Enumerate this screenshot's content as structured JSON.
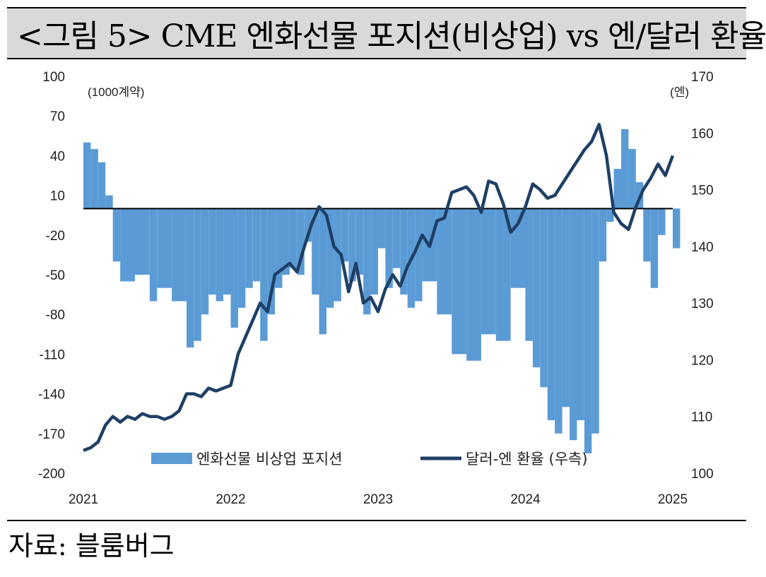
{
  "header": {
    "title": "<그림 5> CME 엔화선물 포지션(비상업) vs 엔/달러 환율"
  },
  "footer": {
    "source": "자료: 블룸버그"
  },
  "chart_data": {
    "type": "bar+line",
    "title": "",
    "left_axis": {
      "unit_label": "(1000계약)",
      "ylim": [
        -200,
        100
      ],
      "ticks": [
        100,
        70,
        40,
        10,
        -20,
        -50,
        -80,
        -110,
        -140,
        -170,
        -200
      ]
    },
    "right_axis": {
      "unit_label": "(엔)",
      "ylim": [
        100,
        170
      ],
      "ticks": [
        170,
        160,
        150,
        140,
        130,
        120,
        110,
        100
      ]
    },
    "x_axis": {
      "range": [
        2021.0,
        2025.0
      ],
      "ticks": [
        "2021",
        "2022",
        "2023",
        "2024",
        "2025"
      ]
    },
    "legend": {
      "placement": "bottom-center"
    },
    "grid": false,
    "colors": {
      "bars": "#5b9bd5",
      "line": "#1f3f66",
      "zero_line": "#000000"
    },
    "series": [
      {
        "name": "엔화선물 비상업 포지션",
        "type": "bar",
        "axis": "left",
        "x": [
          2021.0,
          2021.05,
          2021.1,
          2021.15,
          2021.2,
          2021.25,
          2021.35,
          2021.45,
          2021.5,
          2021.6,
          2021.7,
          2021.75,
          2021.8,
          2021.85,
          2021.9,
          2021.95,
          2022.0,
          2022.05,
          2022.1,
          2022.15,
          2022.2,
          2022.25,
          2022.3,
          2022.35,
          2022.4,
          2022.45,
          2022.5,
          2022.55,
          2022.6,
          2022.65,
          2022.7,
          2022.75,
          2022.8,
          2022.85,
          2022.9,
          2022.95,
          2023.0,
          2023.05,
          2023.1,
          2023.15,
          2023.2,
          2023.25,
          2023.3,
          2023.4,
          2023.5,
          2023.6,
          2023.7,
          2023.8,
          2023.9,
          2024.0,
          2024.05,
          2024.1,
          2024.15,
          2024.2,
          2024.25,
          2024.3,
          2024.35,
          2024.4,
          2024.45,
          2024.5,
          2024.55,
          2024.6,
          2024.65,
          2024.7,
          2024.75,
          2024.8,
          2024.85,
          2024.9,
          2024.95,
          2025.0
        ],
        "values": [
          50,
          45,
          35,
          10,
          -40,
          -55,
          -50,
          -70,
          -60,
          -70,
          -105,
          -100,
          -80,
          -65,
          -70,
          -65,
          -90,
          -75,
          -60,
          -55,
          -100,
          -80,
          -60,
          -50,
          -45,
          -50,
          -25,
          -65,
          -95,
          -75,
          -70,
          -40,
          -55,
          -50,
          -80,
          -65,
          -30,
          -60,
          -45,
          -65,
          -75,
          -70,
          -55,
          -80,
          -110,
          -115,
          -95,
          -100,
          -60,
          -100,
          -120,
          -135,
          -160,
          -170,
          -150,
          -175,
          -160,
          -185,
          -170,
          -40,
          -10,
          30,
          60,
          45,
          20,
          -40,
          -60,
          -20,
          0,
          -30
        ]
      },
      {
        "name": "달러-엔 환율 (우측)",
        "type": "line",
        "axis": "right",
        "x": [
          2021.0,
          2021.05,
          2021.1,
          2021.15,
          2021.2,
          2021.25,
          2021.3,
          2021.35,
          2021.4,
          2021.45,
          2021.5,
          2021.55,
          2021.6,
          2021.65,
          2021.7,
          2021.75,
          2021.8,
          2021.85,
          2021.9,
          2021.95,
          2022.0,
          2022.05,
          2022.1,
          2022.15,
          2022.2,
          2022.25,
          2022.3,
          2022.35,
          2022.4,
          2022.45,
          2022.5,
          2022.55,
          2022.6,
          2022.65,
          2022.7,
          2022.75,
          2022.8,
          2022.85,
          2022.9,
          2022.95,
          2023.0,
          2023.05,
          2023.1,
          2023.15,
          2023.2,
          2023.25,
          2023.3,
          2023.35,
          2023.4,
          2023.45,
          2023.5,
          2023.55,
          2023.6,
          2023.65,
          2023.7,
          2023.75,
          2023.8,
          2023.85,
          2023.9,
          2023.95,
          2024.0,
          2024.05,
          2024.1,
          2024.15,
          2024.2,
          2024.25,
          2024.3,
          2024.35,
          2024.4,
          2024.45,
          2024.5,
          2024.55,
          2024.6,
          2024.65,
          2024.7,
          2024.75,
          2024.8,
          2024.85,
          2024.9,
          2024.95,
          2025.0
        ],
        "values": [
          104,
          104.5,
          105.5,
          108.5,
          110,
          109,
          110,
          109.5,
          110.5,
          110,
          110,
          109.5,
          110,
          111,
          114,
          114,
          113.5,
          115,
          114.5,
          115,
          115.5,
          121,
          124,
          127,
          130,
          128.5,
          135,
          136,
          137,
          135.5,
          140,
          144,
          147,
          145.5,
          140,
          138.5,
          132,
          137,
          130,
          131,
          128.5,
          132.5,
          135,
          133,
          136.5,
          139,
          142,
          140,
          144.5,
          145,
          149.5,
          150,
          150.5,
          149,
          146,
          151.5,
          151,
          147.5,
          142.5,
          144,
          147,
          151,
          150,
          148.5,
          149,
          151,
          153,
          155,
          157,
          158.5,
          161.5,
          156,
          146,
          144,
          143,
          147,
          150,
          152,
          154.5,
          152.5,
          156
        ]
      }
    ]
  }
}
